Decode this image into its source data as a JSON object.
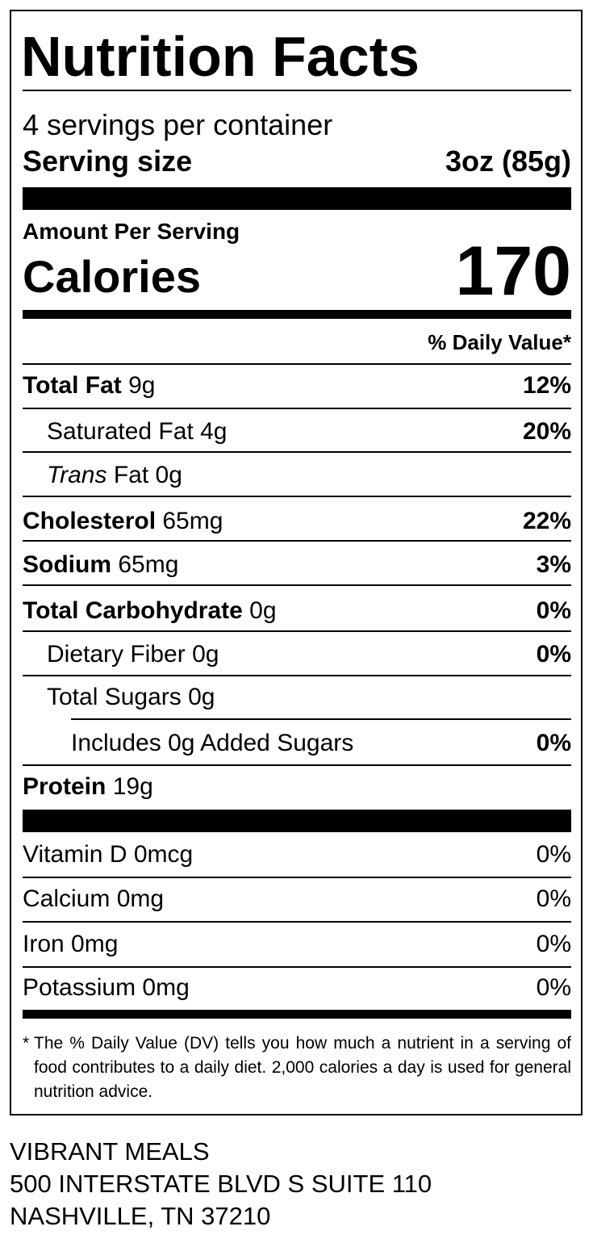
{
  "label": {
    "title": "Nutrition Facts",
    "servings": "4 servings per container",
    "serving_size": {
      "label": "Serving size",
      "value": "3oz (85g)"
    },
    "amount_per_serving": "Amount Per Serving",
    "calories": {
      "label": "Calories",
      "value": "170"
    },
    "daily_value_header": "% Daily Value*",
    "nutrients": [
      {
        "name": "Total Fat",
        "amount": "9g",
        "dv": "12%"
      },
      {
        "name": "Saturated Fat",
        "amount": "4g",
        "dv": "20%"
      },
      {
        "name_italic": "Trans",
        "name": "Fat",
        "amount": "0g"
      },
      {
        "name": "Cholesterol",
        "amount": "65mg",
        "dv": "22%"
      },
      {
        "name": "Sodium",
        "amount": "65mg",
        "dv": "3%"
      },
      {
        "name": "Total Carbohydrate",
        "amount": "0g",
        "dv": "0%"
      },
      {
        "name": "Dietary Fiber",
        "amount": "0g",
        "dv": "0%"
      },
      {
        "name": "Total Sugars",
        "amount": "0g"
      },
      {
        "name": "Includes 0g Added Sugars",
        "dv": "0%"
      },
      {
        "name": "Protein",
        "amount": "19g"
      }
    ],
    "vitamins": [
      {
        "name": "Vitamin D 0mcg",
        "dv": "0%"
      },
      {
        "name": "Calcium 0mg",
        "dv": "0%"
      },
      {
        "name": "Iron 0mg",
        "dv": "0%"
      },
      {
        "name": "Potassium 0mg",
        "dv": "0%"
      }
    ],
    "footnote": {
      "marker": "*",
      "text": "The % Daily Value (DV) tells you how much a nutrient in a serving of food contributes to a daily diet. 2,000 calories a day is used for general nutrition advice."
    }
  },
  "address": [
    "VIBRANT MEALS",
    "500 INTERSTATE BLVD S SUITE 110",
    "NASHVILLE, TN 37210"
  ]
}
